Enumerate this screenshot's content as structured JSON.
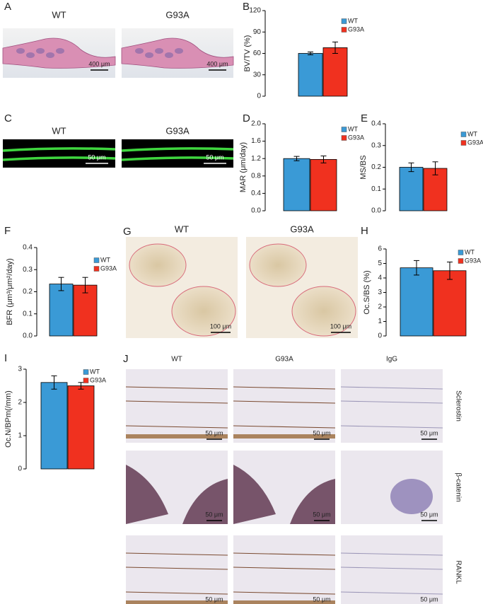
{
  "chart_data": [
    {
      "type": "bar",
      "panel": "B",
      "ylabel": "BV/TV (%)",
      "series": [
        {
          "name": "WT",
          "color": "#3a9ad6",
          "values": [
            60
          ],
          "errors": [
            2
          ]
        },
        {
          "name": "G93A",
          "color": "#f0311f",
          "values": [
            68
          ],
          "errors": [
            8
          ]
        }
      ],
      "ylim": [
        0,
        120
      ],
      "yticks": [
        0,
        30,
        60,
        90,
        120
      ]
    },
    {
      "type": "bar",
      "panel": "D",
      "ylabel": "MAR (μm/day)",
      "series": [
        {
          "name": "WT",
          "color": "#3a9ad6",
          "values": [
            1.2
          ],
          "errors": [
            0.05
          ]
        },
        {
          "name": "G93A",
          "color": "#f0311f",
          "values": [
            1.18
          ],
          "errors": [
            0.08
          ]
        }
      ],
      "ylim": [
        0,
        2.0
      ],
      "yticks": [
        {
          "value": 0,
          "label": "0.0"
        },
        {
          "value": 0.4,
          "label": "0.4"
        },
        {
          "value": 0.8,
          "label": "0.8"
        },
        {
          "value": 1.2,
          "label": "1.2"
        },
        {
          "value": 1.6,
          "label": "1.6"
        },
        {
          "value": 2.0,
          "label": "2.0"
        }
      ]
    },
    {
      "type": "bar",
      "panel": "E",
      "ylabel": "MS/BS",
      "series": [
        {
          "name": "WT",
          "color": "#3a9ad6",
          "values": [
            0.2
          ],
          "errors": [
            0.02
          ]
        },
        {
          "name": "G93A",
          "color": "#f0311f",
          "values": [
            0.195
          ],
          "errors": [
            0.03
          ]
        }
      ],
      "ylim": [
        0,
        0.4
      ],
      "yticks": [
        {
          "value": 0,
          "label": "0.0"
        },
        0.1,
        0.2,
        0.3,
        0.4
      ]
    },
    {
      "type": "bar",
      "panel": "F",
      "ylabel": "BFR (μm³/μm²/day)",
      "series": [
        {
          "name": "WT",
          "color": "#3a9ad6",
          "values": [
            0.235
          ],
          "errors": [
            0.03
          ]
        },
        {
          "name": "G93A",
          "color": "#f0311f",
          "values": [
            0.23
          ],
          "errors": [
            0.035
          ]
        }
      ],
      "ylim": [
        0,
        0.4
      ],
      "yticks": [
        {
          "value": 0,
          "label": "0.0"
        },
        0.1,
        0.2,
        0.3,
        0.4
      ]
    },
    {
      "type": "bar",
      "panel": "H",
      "ylabel": "Oc.S/BS (%)",
      "series": [
        {
          "name": "WT",
          "color": "#3a9ad6",
          "values": [
            4.7
          ],
          "errors": [
            0.5
          ]
        },
        {
          "name": "G93A",
          "color": "#f0311f",
          "values": [
            4.5
          ],
          "errors": [
            0.6
          ]
        }
      ],
      "ylim": [
        0,
        6
      ],
      "yticks": [
        0,
        1,
        2,
        3,
        4,
        5,
        6
      ]
    },
    {
      "type": "bar",
      "panel": "I",
      "ylabel": "Oc.N/BPm(/mm)",
      "series": [
        {
          "name": "WT",
          "color": "#3a9ad6",
          "values": [
            2.6
          ],
          "errors": [
            0.2
          ]
        },
        {
          "name": "G93A",
          "color": "#f0311f",
          "values": [
            2.5
          ],
          "errors": [
            0.1
          ]
        }
      ],
      "ylim": [
        0,
        3
      ],
      "yticks": [
        0,
        1,
        2,
        3
      ]
    }
  ],
  "images": {
    "A": {
      "letter": "A",
      "labels": [
        "WT",
        "G93A"
      ],
      "scale_bars": [
        "400 μm",
        "400 μm"
      ]
    },
    "C": {
      "letter": "C",
      "labels": [
        "WT",
        "G93A"
      ],
      "scale_bars": [
        "50 μm",
        "50 μm"
      ]
    },
    "G": {
      "letter": "G",
      "labels": [
        "WT",
        "G93A"
      ],
      "scale_bars": [
        "100 μm",
        "100 μm"
      ]
    },
    "J": {
      "letter": "J",
      "columns": [
        "WT",
        "G93A",
        "IgG"
      ],
      "rows": [
        "Sclerostin",
        "β-catenin",
        "RANKL"
      ],
      "scale_bars": [
        "50 μm",
        "50 μm",
        "50 μm",
        "50 μm",
        "50 μm",
        "50 μm",
        "50 μm",
        "50 μm",
        "50 μm"
      ]
    }
  }
}
